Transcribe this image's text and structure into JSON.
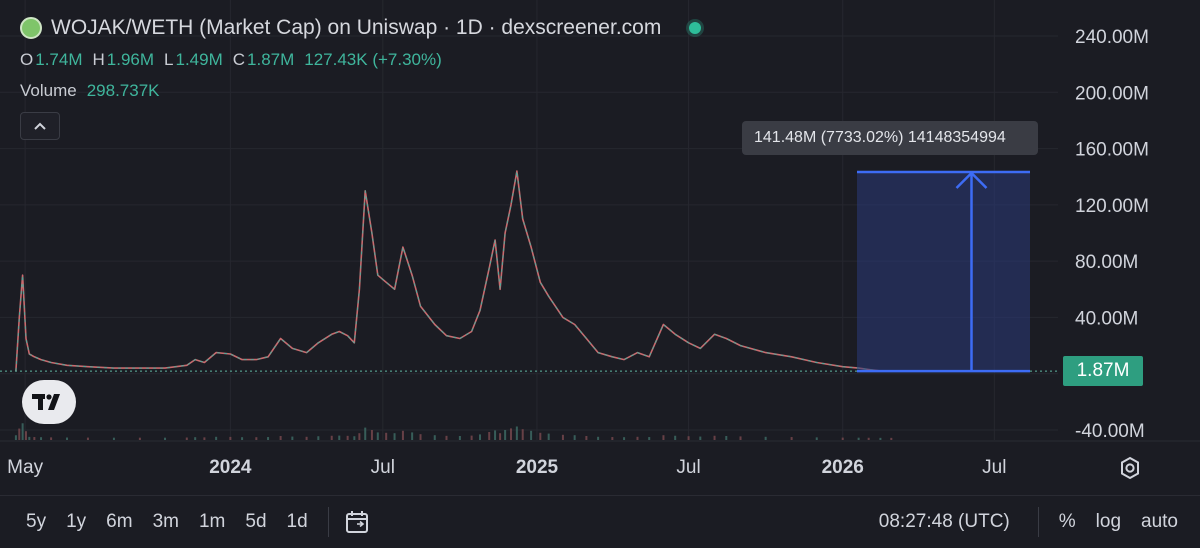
{
  "header": {
    "title": "WOJAK/WETH (Market Cap) on Uniswap · 1D · dexscreener.com",
    "ohlc": [
      {
        "key": "O",
        "value": "1.74M"
      },
      {
        "key": "H",
        "value": "1.96M"
      },
      {
        "key": "L",
        "value": "1.49M"
      },
      {
        "key": "C",
        "value": "1.87M"
      }
    ],
    "change": "127.43K (+7.30%)",
    "volume_label": "Volume",
    "volume_value": "298.737K"
  },
  "measure_label": "141.48M (7733.02%) 14148354994",
  "price_badge": "1.87M",
  "colors": {
    "background": "#1b1c23",
    "up": "#3fb59c",
    "down": "#e06767",
    "measure": "#3d6cf5",
    "badge": "#2e9e80"
  },
  "toolbar": {
    "timeframes": [
      "5y",
      "1y",
      "6m",
      "3m",
      "1m",
      "5d",
      "1d"
    ],
    "clock": "08:27:48 (UTC)",
    "percent": "%",
    "log": "log",
    "auto": "auto"
  },
  "chart_data": {
    "type": "line",
    "title": "WOJAK/WETH (Market Cap) on Uniswap · 1D · dexscreener.com",
    "y_unit": "M",
    "ylim": [
      -40,
      250
    ],
    "y_ticks": [
      "240.00M",
      "200.00M",
      "160.00M",
      "120.00M",
      "80.00M",
      "40.00M",
      "-40.00M"
    ],
    "y_tick_values": [
      240,
      200,
      160,
      120,
      80,
      40,
      -40
    ],
    "x_ticks": [
      "May",
      "2024",
      "Jul",
      "2025",
      "Jul",
      "2026",
      "Jul"
    ],
    "x_tick_dates": [
      "2023-05-01",
      "2024-01-01",
      "2024-07-01",
      "2025-01-01",
      "2025-07-01",
      "2026-01-01",
      "2026-07-01"
    ],
    "x_tick_bold": [
      false,
      true,
      false,
      true,
      false,
      true,
      false
    ],
    "xlim": [
      "2023-04-01",
      "2026-09-15"
    ],
    "grid": true,
    "series": [
      {
        "x": [
          "2023-04-20",
          "2023-04-24",
          "2023-04-28",
          "2023-05-02",
          "2023-05-06",
          "2023-05-12",
          "2023-05-20",
          "2023-06-01",
          "2023-06-20",
          "2023-07-15",
          "2023-08-15",
          "2023-09-15",
          "2023-10-15",
          "2023-11-10",
          "2023-11-20",
          "2023-12-01",
          "2023-12-15",
          "2024-01-01",
          "2024-01-15",
          "2024-02-01",
          "2024-02-15",
          "2024-03-01",
          "2024-03-15",
          "2024-04-01",
          "2024-04-15",
          "2024-05-01",
          "2024-05-10",
          "2024-05-20",
          "2024-05-28",
          "2024-06-03",
          "2024-06-10",
          "2024-06-18",
          "2024-06-25",
          "2024-07-05",
          "2024-07-15",
          "2024-07-25",
          "2024-08-05",
          "2024-08-15",
          "2024-09-01",
          "2024-09-15",
          "2024-10-01",
          "2024-10-15",
          "2024-10-25",
          "2024-11-05",
          "2024-11-12",
          "2024-11-18",
          "2024-11-24",
          "2024-12-01",
          "2024-12-08",
          "2024-12-15",
          "2024-12-25",
          "2025-01-05",
          "2025-01-15",
          "2025-02-01",
          "2025-02-15",
          "2025-03-01",
          "2025-03-15",
          "2025-04-01",
          "2025-04-15",
          "2025-05-01",
          "2025-05-15",
          "2025-06-01",
          "2025-06-15",
          "2025-07-01",
          "2025-07-15",
          "2025-08-01",
          "2025-08-15",
          "2025-09-01",
          "2025-10-01",
          "2025-11-01",
          "2025-12-01",
          "2026-01-01",
          "2026-01-20",
          "2026-02-01",
          "2026-02-15",
          "2026-02-28"
        ],
        "y": [
          2,
          40,
          70,
          25,
          14,
          12,
          10,
          8,
          6,
          5,
          4,
          4,
          4,
          6,
          10,
          8,
          15,
          14,
          10,
          10,
          12,
          25,
          18,
          15,
          22,
          28,
          30,
          27,
          22,
          60,
          130,
          100,
          70,
          65,
          60,
          90,
          70,
          48,
          35,
          27,
          25,
          30,
          45,
          75,
          95,
          60,
          100,
          120,
          144,
          110,
          90,
          65,
          55,
          40,
          35,
          25,
          15,
          12,
          10,
          15,
          12,
          35,
          28,
          22,
          18,
          28,
          25,
          20,
          15,
          12,
          8,
          5,
          4,
          3,
          2,
          1.87
        ]
      }
    ]
  }
}
